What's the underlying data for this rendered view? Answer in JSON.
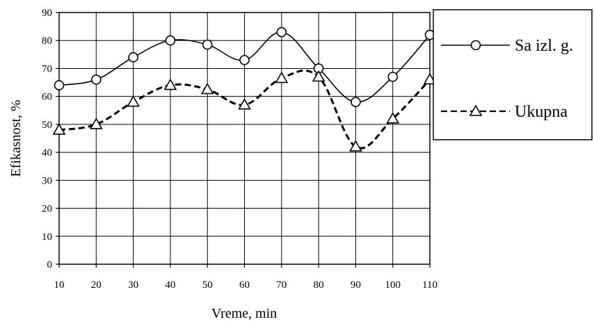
{
  "chart_data": {
    "type": "line",
    "xlabel": "Vreme, min",
    "ylabel": "Efikasnost, %",
    "xlim": [
      10,
      110
    ],
    "ylim": [
      0,
      90
    ],
    "x_ticks": [
      10,
      20,
      30,
      40,
      50,
      60,
      70,
      80,
      90,
      100,
      110
    ],
    "y_ticks": [
      0,
      10,
      20,
      30,
      40,
      50,
      60,
      70,
      80,
      90
    ],
    "grid": true,
    "legend_position": "right",
    "series": [
      {
        "name": "Sa izl. g.",
        "marker": "circle",
        "line_style": "solid",
        "x": [
          10,
          20,
          30,
          40,
          50,
          60,
          70,
          80,
          90,
          100,
          110
        ],
        "values": [
          64,
          66,
          74,
          80,
          78.5,
          73,
          83,
          70,
          58,
          67,
          82
        ]
      },
      {
        "name": "Ukupna",
        "marker": "triangle",
        "line_style": "dashed",
        "x": [
          10,
          20,
          30,
          40,
          50,
          60,
          70,
          80,
          90,
          100,
          110
        ],
        "values": [
          48,
          50,
          58,
          64,
          62.5,
          57,
          66.5,
          67,
          42,
          52,
          66
        ]
      }
    ]
  }
}
